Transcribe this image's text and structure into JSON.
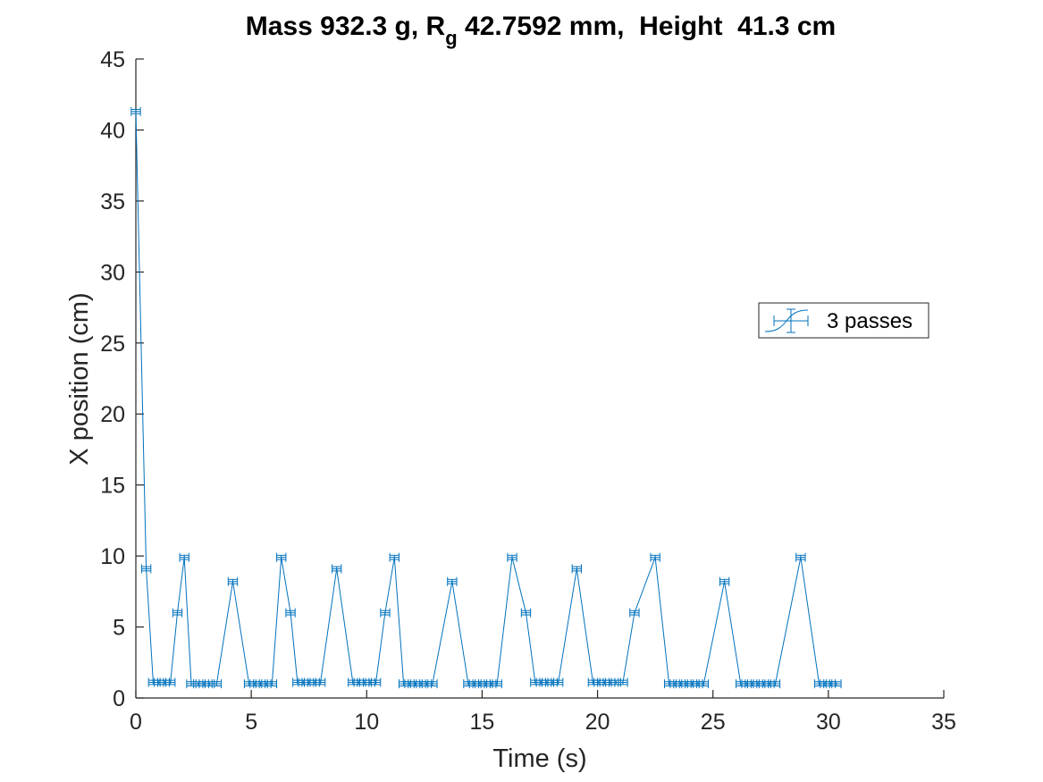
{
  "chart_data": {
    "type": "line",
    "title_parts": {
      "before_sub": "Mass 932.3 g, R",
      "subscript": "g",
      "after_sub": " 42.7592 mm,  Height  41.3 cm"
    },
    "xlabel": "Time (s)",
    "ylabel": "X position (cm)",
    "xlim": [
      0,
      35
    ],
    "ylim": [
      0,
      45
    ],
    "xticks": [
      0,
      5,
      10,
      15,
      20,
      25,
      30,
      35
    ],
    "yticks": [
      0,
      5,
      10,
      15,
      20,
      25,
      30,
      35,
      40,
      45
    ],
    "grid": false,
    "legend_position": "right",
    "line_color": "#0072BD",
    "series": [
      {
        "name": "3 passes",
        "marker": "errorbar",
        "xerr": 0.2,
        "yerr": 0.15,
        "points": [
          [
            0,
            41.3
          ],
          [
            0.45,
            9.1
          ],
          [
            0.75,
            1.1
          ],
          [
            1.0,
            1.1
          ],
          [
            1.25,
            1.1
          ],
          [
            1.5,
            1.1
          ],
          [
            1.8,
            6.0
          ],
          [
            2.1,
            9.9
          ],
          [
            2.4,
            1.0
          ],
          [
            2.7,
            1.0
          ],
          [
            2.95,
            1.0
          ],
          [
            3.2,
            1.0
          ],
          [
            3.5,
            1.0
          ],
          [
            4.2,
            8.2
          ],
          [
            4.9,
            1.0
          ],
          [
            5.15,
            1.0
          ],
          [
            5.4,
            1.0
          ],
          [
            5.65,
            1.0
          ],
          [
            5.9,
            1.0
          ],
          [
            6.3,
            9.9
          ],
          [
            6.7,
            6.0
          ],
          [
            7.0,
            1.1
          ],
          [
            7.25,
            1.1
          ],
          [
            7.5,
            1.1
          ],
          [
            7.75,
            1.1
          ],
          [
            8.0,
            1.1
          ],
          [
            8.7,
            9.1
          ],
          [
            9.4,
            1.1
          ],
          [
            9.65,
            1.1
          ],
          [
            9.9,
            1.1
          ],
          [
            10.15,
            1.1
          ],
          [
            10.4,
            1.1
          ],
          [
            10.8,
            6.0
          ],
          [
            11.2,
            9.9
          ],
          [
            11.6,
            1.0
          ],
          [
            11.85,
            1.0
          ],
          [
            12.1,
            1.0
          ],
          [
            12.35,
            1.0
          ],
          [
            12.6,
            1.0
          ],
          [
            12.85,
            1.0
          ],
          [
            13.7,
            8.2
          ],
          [
            14.4,
            1.0
          ],
          [
            14.65,
            1.0
          ],
          [
            14.9,
            1.0
          ],
          [
            15.15,
            1.0
          ],
          [
            15.4,
            1.0
          ],
          [
            15.65,
            1.0
          ],
          [
            16.3,
            9.9
          ],
          [
            16.9,
            6.0
          ],
          [
            17.3,
            1.1
          ],
          [
            17.55,
            1.1
          ],
          [
            17.8,
            1.1
          ],
          [
            18.05,
            1.1
          ],
          [
            18.3,
            1.1
          ],
          [
            19.1,
            9.1
          ],
          [
            19.8,
            1.1
          ],
          [
            20.05,
            1.1
          ],
          [
            20.3,
            1.1
          ],
          [
            20.55,
            1.1
          ],
          [
            20.8,
            1.1
          ],
          [
            21.1,
            1.1
          ],
          [
            21.6,
            6.0
          ],
          [
            22.5,
            9.9
          ],
          [
            23.1,
            1.0
          ],
          [
            23.35,
            1.0
          ],
          [
            23.6,
            1.0
          ],
          [
            23.85,
            1.0
          ],
          [
            24.1,
            1.0
          ],
          [
            24.35,
            1.0
          ],
          [
            24.6,
            1.0
          ],
          [
            25.5,
            8.2
          ],
          [
            26.2,
            1.0
          ],
          [
            26.45,
            1.0
          ],
          [
            26.7,
            1.0
          ],
          [
            26.95,
            1.0
          ],
          [
            27.2,
            1.0
          ],
          [
            27.45,
            1.0
          ],
          [
            27.7,
            1.0
          ],
          [
            28.8,
            9.9
          ],
          [
            29.6,
            1.0
          ],
          [
            29.85,
            1.0
          ],
          [
            30.1,
            1.0
          ],
          [
            30.35,
            1.0
          ]
        ]
      }
    ]
  }
}
